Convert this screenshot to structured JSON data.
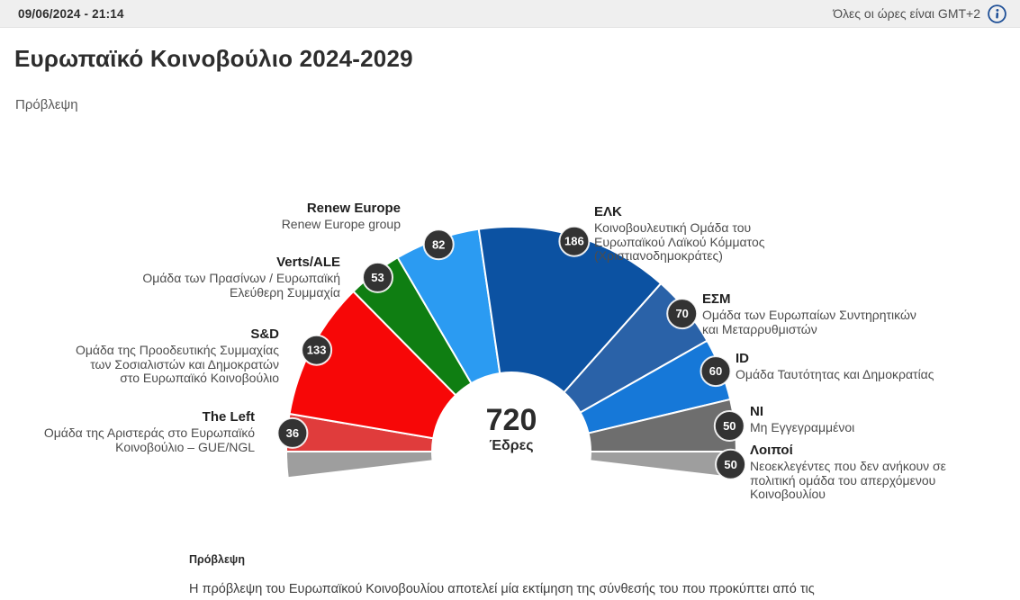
{
  "topbar": {
    "datetime": "09/06/2024 - 21:14",
    "timezone_note": "Όλες οι ώρες είναι GMT+2",
    "info_icon": "info-icon",
    "accent_color": "#1d4e96",
    "background_color": "#efefef"
  },
  "page": {
    "title": "Ευρωπαϊκό Κοινοβούλιο 2024-2029",
    "subtitle": "Πρόβλεψη"
  },
  "chart_data": {
    "type": "hemicycle",
    "title": "Ευρωπαϊκό Κοινοβούλιο 2024-2029",
    "total_seats": 720,
    "center_value": "720",
    "center_unit": "Έδρες",
    "badge_color": "#333333",
    "badge_text_color": "#ffffff",
    "others_split_both_ends": true,
    "others_seats_per_end": 25,
    "groups": [
      {
        "slug": "the-left",
        "abbr": "The Left",
        "name": "Ομάδα της Αριστεράς στο Ευρωπαϊκό\nΚοινοβούλιο – GUE/NGL",
        "seats": 36,
        "color": "#e03c3c"
      },
      {
        "slug": "snd",
        "abbr": "S&D",
        "name": "Ομάδα της Προοδευτικής Συμμαχίας\nτων Σοσιαλιστών και Δημοκρατών\nστο Ευρωπαϊκό Κοινοβούλιο",
        "seats": 133,
        "color": "#f70707"
      },
      {
        "slug": "verts-ale",
        "abbr": "Verts/ALE",
        "name": "Ομάδα των Πρασίνων / Ευρωπαϊκή\nΕλεύθερη Συμμαχία",
        "seats": 53,
        "color": "#0f7e12"
      },
      {
        "slug": "renew-europe",
        "abbr": "Renew Europe",
        "name": "Renew Europe group",
        "seats": 82,
        "color": "#2b9bf2"
      },
      {
        "slug": "epp",
        "abbr": "ΕΛΚ",
        "name": "Κοινοβουλευτική Ομάδα του\nΕυρωπαϊκού Λαϊκού Κόμματος\n(Χριστιανοδημοκράτες)",
        "seats": 186,
        "color": "#0c52a2"
      },
      {
        "slug": "ecr",
        "abbr": "ΕΣΜ",
        "name": "Ομάδα των Ευρωπαίων Συντηρητικών\nκαι Μεταρρυθμιστών",
        "seats": 70,
        "color": "#2a62a8"
      },
      {
        "slug": "id",
        "abbr": "ID",
        "name": "Ομάδα Ταυτότητας και Δημοκρατίας",
        "seats": 60,
        "color": "#1678d8"
      },
      {
        "slug": "ni",
        "abbr": "NI",
        "name": "Μη Εγγεγραμμένοι",
        "seats": 50,
        "color": "#6e6e6e"
      },
      {
        "slug": "others",
        "abbr": "Λοιποί",
        "name": "Νεοεκλεγέντες που δεν ανήκουν σε\nπολιτική ομάδα του απερχόμενου\nΚοινοβουλίου",
        "seats": 50,
        "color": "#9e9e9e"
      }
    ]
  },
  "footer": {
    "heading": "Πρόβλεψη",
    "body": "Η πρόβλεψη του Ευρωπαϊκού Κοινοβουλίου αποτελεί μία εκτίμηση της σύνθεσής του που προκύπτει από τις"
  }
}
